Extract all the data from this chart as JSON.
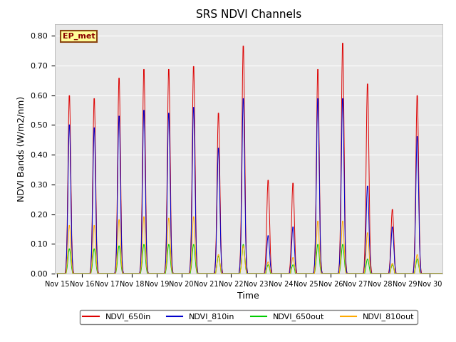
{
  "title": "SRS NDVI Channels",
  "xlabel": "Time",
  "ylabel": "NDVI Bands (W/m2/nm)",
  "ylim": [
    0.0,
    0.84
  ],
  "background_color": "#e8e8e8",
  "site_label": "EP_met",
  "legend_entries": [
    "NDVI_650in",
    "NDVI_810in",
    "NDVI_650out",
    "NDVI_810out"
  ],
  "line_colors": [
    "#dd0000",
    "#0000cc",
    "#00cc00",
    "#ffaa00"
  ],
  "xtick_labels": [
    "Nov 15",
    "Nov 16",
    "Nov 17",
    "Nov 18",
    "Nov 19",
    "Nov 20",
    "Nov 21",
    "Nov 22",
    "Nov 23",
    "Nov 24",
    "Nov 25",
    "Nov 26",
    "Nov 27",
    "Nov 28",
    "Nov 29",
    "Nov 30"
  ],
  "day_peaks_650in": [
    0.61,
    0.6,
    0.67,
    0.7,
    0.7,
    0.71,
    0.55,
    0.78,
    0.32,
    0.31,
    0.7,
    0.79,
    0.65,
    0.22,
    0.61,
    0.0
  ],
  "day_peaks_810in": [
    0.51,
    0.5,
    0.54,
    0.56,
    0.55,
    0.57,
    0.43,
    0.6,
    0.13,
    0.16,
    0.6,
    0.6,
    0.3,
    0.16,
    0.47,
    0.0
  ],
  "day_peaks_650out": [
    0.085,
    0.085,
    0.095,
    0.1,
    0.1,
    0.1,
    0.06,
    0.1,
    0.03,
    0.03,
    0.1,
    0.1,
    0.05,
    0.03,
    0.05,
    0.0
  ],
  "day_peaks_810out": [
    0.165,
    0.165,
    0.185,
    0.195,
    0.19,
    0.195,
    0.065,
    0.095,
    0.04,
    0.055,
    0.18,
    0.18,
    0.14,
    0.035,
    0.065,
    0.0
  ],
  "pts_per_day": 48,
  "yticks": [
    0.0,
    0.1,
    0.2,
    0.3,
    0.4,
    0.5,
    0.6,
    0.7,
    0.8
  ]
}
